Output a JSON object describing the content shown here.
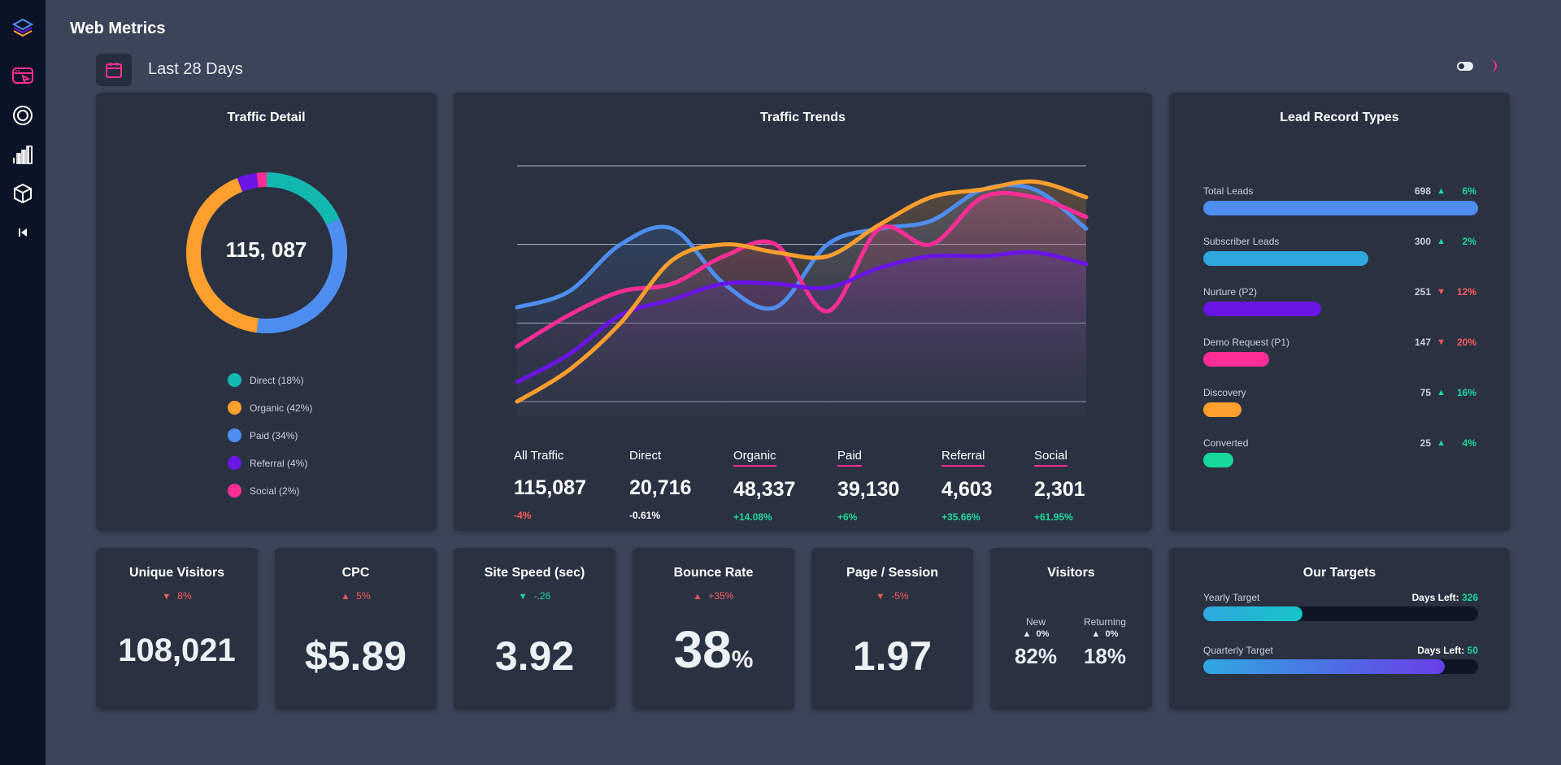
{
  "app": {
    "title": "Web Metrics"
  },
  "sidebar": {
    "items": [
      {
        "icon": "layers-icon"
      },
      {
        "icon": "browser-cursor-icon",
        "active": true
      },
      {
        "icon": "target-icon"
      },
      {
        "icon": "bar-chart-icon"
      },
      {
        "icon": "cube-icon"
      },
      {
        "icon": "collapse-icon"
      }
    ]
  },
  "header": {
    "date_range": "Last 28 Days"
  },
  "colors": {
    "direct": "#12b8b0",
    "organic": "#ff9f2e",
    "paid": "#4e8ef0",
    "referral": "#6a14e6",
    "social": "#ff2d96",
    "up": "#1fd69a",
    "down": "#ff5a5a"
  },
  "traffic_detail": {
    "title": "Traffic Detail",
    "total": "115, 087",
    "legend": [
      {
        "label": "Direct (18%)",
        "pct": 18,
        "color": "#12b8b0"
      },
      {
        "label": "Organic (42%)",
        "pct": 42,
        "color": "#ff9f2e"
      },
      {
        "label": "Paid (34%)",
        "pct": 34,
        "color": "#4e8ef0"
      },
      {
        "label": "Referral (4%)",
        "pct": 4,
        "color": "#6a14e6"
      },
      {
        "label": "Social (2%)",
        "pct": 2,
        "color": "#ff2d96"
      }
    ]
  },
  "traffic_trends": {
    "title": "Traffic Trends",
    "stats": [
      {
        "name": "All Traffic",
        "value": "115,087",
        "delta": "-4%",
        "delta_color": "#ff5a5a",
        "underline": ""
      },
      {
        "name": "Direct",
        "value": "20,716",
        "delta": "-0.61%",
        "delta_color": "#ffffff",
        "underline": ""
      },
      {
        "name": "Organic",
        "value": "48,337",
        "delta": "+14.08%",
        "delta_color": "#1fd69a",
        "underline": "#ff2d96"
      },
      {
        "name": "Paid",
        "value": "39,130",
        "delta": "+6%",
        "delta_color": "#1fd69a",
        "underline": "#ff2d96"
      },
      {
        "name": "Referral",
        "value": "4,603",
        "delta": "+35.66%",
        "delta_color": "#1fd69a",
        "underline": "#ff2d96"
      },
      {
        "name": "Social",
        "value": "2,301",
        "delta": "+61.95%",
        "delta_color": "#1fd69a",
        "underline": "#ff2d96"
      }
    ]
  },
  "chart_data": {
    "type": "area",
    "title": "Traffic Trends",
    "xlabel": "",
    "ylabel": "",
    "ylim": [
      0,
      300
    ],
    "grid": true,
    "legend": "none",
    "x": [
      0,
      1,
      2,
      3,
      4,
      5,
      6,
      7,
      8,
      9,
      10,
      11
    ],
    "series": [
      {
        "color": "#4e8ef0",
        "values": [
          120,
          140,
          200,
          220,
          150,
          120,
          200,
          220,
          230,
          270,
          270,
          220
        ]
      },
      {
        "color": "#ff2d96",
        "values": [
          70,
          110,
          140,
          150,
          185,
          200,
          115,
          220,
          200,
          260,
          260,
          235
        ]
      },
      {
        "color": "#6a14e6",
        "values": [
          25,
          60,
          110,
          130,
          150,
          150,
          145,
          170,
          185,
          185,
          190,
          175
        ]
      },
      {
        "color": "#ff9f2e",
        "values": [
          0,
          40,
          100,
          180,
          200,
          190,
          185,
          225,
          260,
          270,
          280,
          260
        ]
      }
    ]
  },
  "lead_record": {
    "title": "Lead Record Types",
    "items": [
      {
        "name": "Total Leads",
        "count": "698",
        "dir": "up",
        "pct": "6%",
        "fill": 1.0,
        "color": "#4e8ef0"
      },
      {
        "name": "Subscriber Leads",
        "count": "300",
        "dir": "up",
        "pct": "2%",
        "fill": 0.6,
        "color": "#2fa8e0"
      },
      {
        "name": "Nurture (P2)",
        "count": "251",
        "dir": "down",
        "pct": "12%",
        "fill": 0.43,
        "color": "#6a14e6"
      },
      {
        "name": "Demo Request (P1)",
        "count": "147",
        "dir": "down",
        "pct": "20%",
        "fill": 0.24,
        "color": "#ff2d96"
      },
      {
        "name": "Discovery",
        "count": "75",
        "dir": "up",
        "pct": "16%",
        "fill": 0.14,
        "color": "#ff9f2e"
      },
      {
        "name": "Converted",
        "count": "25",
        "dir": "up",
        "pct": "4%",
        "fill": 0.11,
        "color": "#16d99a"
      }
    ]
  },
  "metrics": [
    {
      "title": "Unique Visitors",
      "dir": "down",
      "delta": "8%",
      "value": "108,021",
      "suffix": ""
    },
    {
      "title": "CPC",
      "dir": "up",
      "delta": "5%",
      "value": "$5.89",
      "suffix": "",
      "delta_color": "#ff5a5a"
    },
    {
      "title": "Site Speed (sec)",
      "dir": "down",
      "delta": "-.26",
      "value": "3.92",
      "suffix": "",
      "delta_color": "#1fd69a"
    },
    {
      "title": "Bounce Rate",
      "dir": "up",
      "delta": "+35%",
      "value": "38",
      "suffix": "%",
      "delta_color": "#ff5a5a"
    },
    {
      "title": "Page / Session",
      "dir": "down",
      "delta": "-5%",
      "value": "1.97",
      "suffix": "",
      "delta_color": "#ff5a5a"
    }
  ],
  "visitors": {
    "title": "Visitors",
    "new": {
      "label": "New",
      "delta": "0%",
      "value": "82%"
    },
    "returning": {
      "label": "Returning",
      "delta": "0%",
      "value": "18%"
    }
  },
  "targets": {
    "title": "Our Targets",
    "days_left_label": "Days Left:",
    "items": [
      {
        "label": "Yearly Target",
        "days": "326",
        "progress": 0.36,
        "gradient": [
          "#2fa8e0",
          "#16c4c8"
        ]
      },
      {
        "label": "Quarterly Target",
        "days": "50",
        "progress": 0.88,
        "gradient": [
          "#2fa8e0",
          "#6a3ee8"
        ]
      }
    ]
  }
}
